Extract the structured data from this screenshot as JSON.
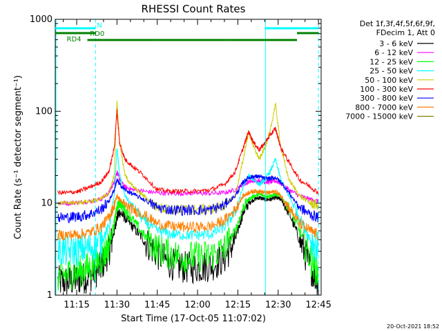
{
  "chart_data": {
    "type": "line",
    "title": "RHESSI Count Rates",
    "xlabel": "Start Time (17-Oct-05 11:07:02)",
    "ylabel": "Count Rate (s⁻¹ detector segment⁻¹)",
    "yscale": "log",
    "ylim": [
      1,
      1000
    ],
    "xlim": [
      "11:07:02",
      "12:46:00"
    ],
    "x_ticks": [
      "11:15",
      "11:30",
      "11:45",
      "12:00",
      "12:15",
      "12:30",
      "12:45"
    ],
    "y_ticks": [
      "1",
      "10",
      "100",
      "1000"
    ],
    "grid": false,
    "legend_header": [
      "Det 1f,3f,4f,5f,6f,9f,",
      "FDecim 1, Att 0"
    ],
    "legend_position": "right, outside plot",
    "x": [
      "11:08",
      "11:12",
      "11:16",
      "11:20",
      "11:24",
      "11:27",
      "11:29",
      "11:30",
      "11:31",
      "11:33",
      "11:36",
      "11:40",
      "11:45",
      "11:50",
      "11:55",
      "12:00",
      "12:05",
      "12:10",
      "12:14",
      "12:17",
      "12:19",
      "12:21",
      "12:23",
      "12:25",
      "12:27",
      "12:29",
      "12:31",
      "12:34",
      "12:38",
      "12:42",
      "12:45"
    ],
    "series": [
      {
        "name": "3 - 6 keV",
        "color": "#000000",
        "values": [
          1.4,
          1.4,
          1.5,
          1.6,
          2.0,
          3.0,
          5.0,
          7.0,
          8.0,
          7.0,
          5.5,
          4.0,
          2.8,
          2.2,
          2.0,
          2.0,
          2.1,
          2.5,
          4.0,
          8.0,
          10.0,
          11.0,
          11.5,
          11.0,
          11.0,
          11.5,
          11.0,
          8.0,
          4.0,
          2.0,
          1.4
        ]
      },
      {
        "name": "6 - 12 keV",
        "color": "#ff00ff",
        "values": [
          10.0,
          10.0,
          10.2,
          10.5,
          11.0,
          13.0,
          17.0,
          22.0,
          18.0,
          15.0,
          14.0,
          13.5,
          13.0,
          12.8,
          12.8,
          12.8,
          12.8,
          13.0,
          14.0,
          16.0,
          17.0,
          17.5,
          17.5,
          17.0,
          17.0,
          17.5,
          16.5,
          14.0,
          12.0,
          11.0,
          10.5
        ]
      },
      {
        "name": "12 - 25 keV",
        "color": "#00ff00",
        "values": [
          1.6,
          1.7,
          1.8,
          2.0,
          2.4,
          3.5,
          6.0,
          9.0,
          10.0,
          8.5,
          6.5,
          4.5,
          3.2,
          2.8,
          2.6,
          2.6,
          2.7,
          3.2,
          5.0,
          9.0,
          11.0,
          12.0,
          12.5,
          12.0,
          12.0,
          12.5,
          12.0,
          9.0,
          5.0,
          2.5,
          1.7
        ]
      },
      {
        "name": "25 - 50 keV",
        "color": "#00ffff",
        "values": [
          3.0,
          3.0,
          3.1,
          3.3,
          3.8,
          5.5,
          12.0,
          40.0,
          20.0,
          12.0,
          9.0,
          6.5,
          5.0,
          4.6,
          4.5,
          4.5,
          4.6,
          5.5,
          8.0,
          15.0,
          20.0,
          18.0,
          16.0,
          18.0,
          22.0,
          30.0,
          18.0,
          12.0,
          7.0,
          4.0,
          3.2
        ]
      },
      {
        "name": "50 - 100 keV",
        "color": "#cccc00",
        "values": [
          10.0,
          10.0,
          10.2,
          10.5,
          11.0,
          13.0,
          20.0,
          130.0,
          45.0,
          20.0,
          15.0,
          12.0,
          9.0,
          8.5,
          8.5,
          8.5,
          8.6,
          9.5,
          12.0,
          30.0,
          60.0,
          40.0,
          30.0,
          40.0,
          60.0,
          120.0,
          40.0,
          18.0,
          12.0,
          10.0,
          9.5
        ]
      },
      {
        "name": "100 - 300 keV",
        "color": "#ff0000",
        "values": [
          13.0,
          13.0,
          13.5,
          15.0,
          17.0,
          22.0,
          40.0,
          100.0,
          45.0,
          30.0,
          25.0,
          20.0,
          14.0,
          13.5,
          13.5,
          13.5,
          14.0,
          16.0,
          22.0,
          40.0,
          60.0,
          45.0,
          38.0,
          45.0,
          55.0,
          65.0,
          40.0,
          28.0,
          18.0,
          15.0,
          13.0
        ]
      },
      {
        "name": "300 - 800 keV",
        "color": "#0000ff",
        "values": [
          7.0,
          7.0,
          7.2,
          7.6,
          8.5,
          10.5,
          14.0,
          18.0,
          16.0,
          14.0,
          12.5,
          11.0,
          9.0,
          8.5,
          8.4,
          8.4,
          8.5,
          9.5,
          12.0,
          17.0,
          19.0,
          19.5,
          19.5,
          18.5,
          18.5,
          19.0,
          17.0,
          13.0,
          9.0,
          7.5,
          7.0
        ]
      },
      {
        "name": "800 - 7000 keV",
        "color": "#ff8000",
        "values": [
          4.5,
          4.5,
          4.6,
          4.8,
          5.5,
          7.0,
          9.5,
          12.0,
          11.0,
          9.5,
          8.5,
          7.5,
          6.0,
          5.6,
          5.5,
          5.5,
          5.6,
          6.5,
          8.5,
          12.0,
          13.0,
          13.5,
          13.5,
          13.0,
          13.0,
          13.5,
          12.0,
          9.0,
          6.0,
          5.0,
          4.5
        ]
      },
      {
        "name": "7000 - 15000 keV",
        "color": "#808000",
        "values": [
          null,
          null,
          null,
          null,
          null,
          null,
          null,
          null,
          null,
          null,
          null,
          null,
          null,
          null,
          null,
          null,
          null,
          null,
          null,
          null,
          null,
          null,
          null,
          null,
          null,
          null,
          null,
          null,
          null,
          null,
          null
        ]
      }
    ],
    "state_bars": [
      {
        "label": "N",
        "color": "#00ffff",
        "segments": [
          [
            "11:07",
            "11:22"
          ],
          [
            "12:25",
            "12:45"
          ]
        ]
      },
      {
        "label": "RD0",
        "color": "#008000",
        "segments": [
          [
            "11:07",
            "11:22"
          ],
          [
            "12:37",
            "12:45"
          ]
        ]
      },
      {
        "label": "RD4",
        "color": "#008000",
        "segments": [
          [
            "11:19",
            "11:45"
          ],
          [
            "11:45",
            "12:12"
          ],
          [
            "12:12",
            "12:37"
          ]
        ]
      }
    ],
    "cyan_vlines_solid": [
      "11:07",
      "12:25"
    ],
    "cyan_vlines_dashed": [
      "11:22",
      "12:45"
    ]
  },
  "footer_timestamp": "20-Oct-2021 18:52"
}
